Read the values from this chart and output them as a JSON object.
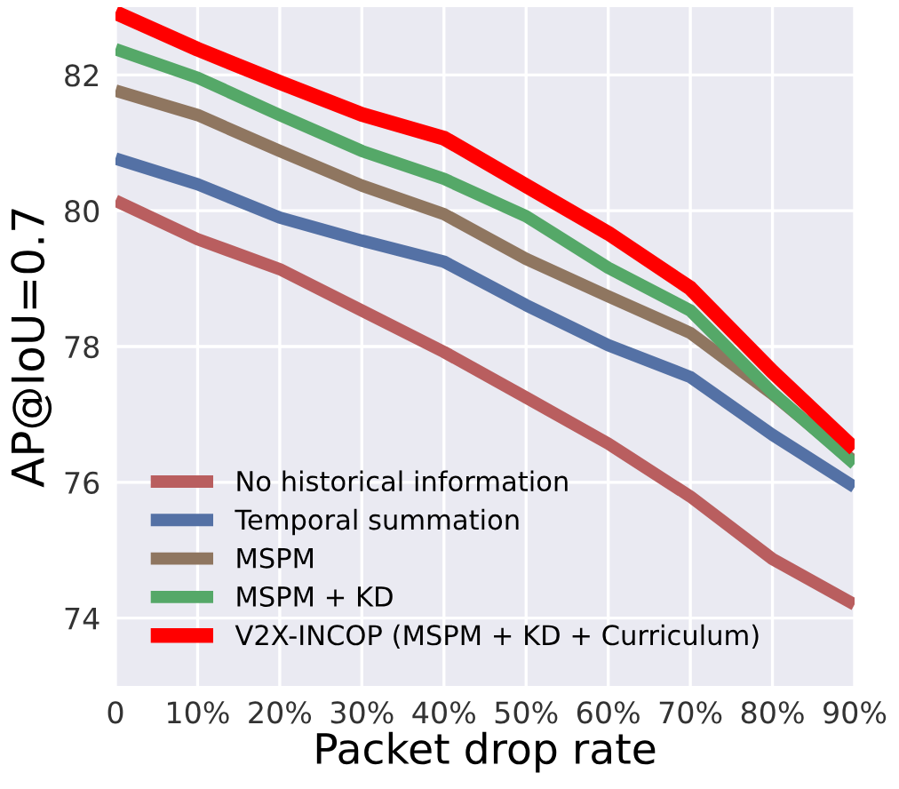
{
  "chart_data": {
    "type": "line",
    "xlabel": "Packet drop rate",
    "ylabel": "AP@IoU=0.7",
    "x": [
      0,
      10,
      20,
      30,
      40,
      50,
      60,
      70,
      80,
      90
    ],
    "xlim": [
      0,
      90
    ],
    "xticks": [
      0,
      {
        "value": 10,
        "label": "10%"
      },
      {
        "value": 20,
        "label": "20%"
      },
      {
        "value": 30,
        "label": "30%"
      },
      {
        "value": 40,
        "label": "40%"
      },
      {
        "value": 50,
        "label": "50%"
      },
      {
        "value": 60,
        "label": "60%"
      },
      {
        "value": 70,
        "label": "70%"
      },
      {
        "value": 80,
        "label": "80%"
      },
      {
        "value": 90,
        "label": "90%"
      }
    ],
    "ylim": [
      73,
      83
    ],
    "yticks": [
      74,
      76,
      78,
      80,
      82
    ],
    "grid": true,
    "legend": "bottom left",
    "marker": "none",
    "line_style": "solid",
    "series": [
      {
        "name": "No historical information",
        "color": "#b95e5f",
        "values": [
          80.15,
          79.58,
          79.14,
          78.53,
          77.92,
          77.25,
          76.57,
          75.79,
          74.87,
          74.2
        ]
      },
      {
        "name": "Temporal summation",
        "color": "#5471a5",
        "values": [
          80.77,
          80.39,
          79.9,
          79.56,
          79.25,
          78.61,
          78.02,
          77.55,
          76.7,
          75.93
        ]
      },
      {
        "name": "MSPM",
        "color": "#8f7660",
        "values": [
          81.77,
          81.41,
          80.88,
          80.37,
          79.95,
          79.29,
          78.74,
          78.2,
          77.3,
          76.3
        ]
      },
      {
        "name": "MSPM + KD",
        "color": "#55a868",
        "values": [
          82.38,
          81.96,
          81.41,
          80.88,
          80.47,
          79.92,
          79.16,
          78.53,
          77.32,
          76.27
        ]
      },
      {
        "name": "V2X-INCOP (MSPM + KD + Curriculum)",
        "color": "#ff0000",
        "values": [
          82.92,
          82.38,
          81.89,
          81.42,
          81.07,
          80.37,
          79.67,
          78.86,
          77.63,
          76.49
        ]
      }
    ]
  }
}
